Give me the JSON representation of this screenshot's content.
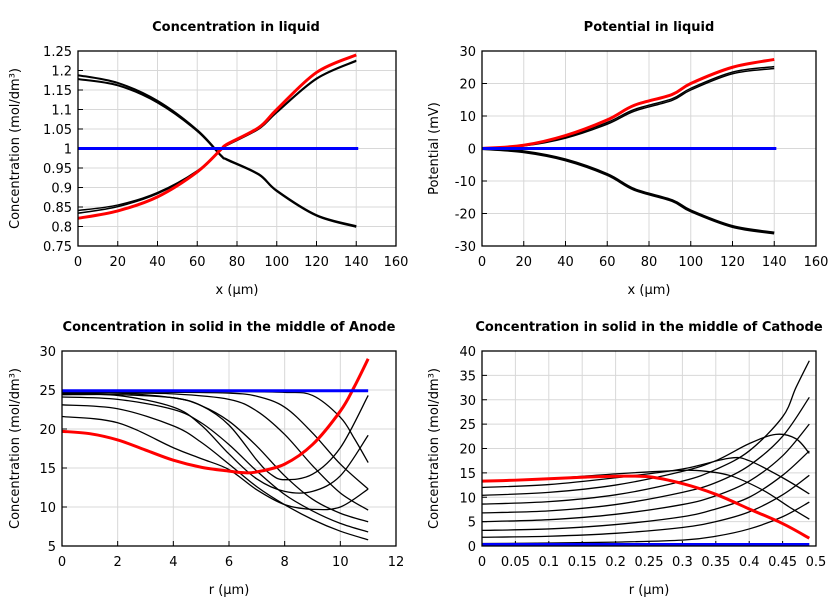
{
  "chart_data": [
    {
      "type": "line",
      "title": "Concentration in liquid",
      "xlabel": "x (µm)",
      "ylabel": "Concentration (mol/dm³)",
      "xlim": [
        0,
        160
      ],
      "ylim": [
        0.75,
        1.25
      ],
      "xticks": [
        "0",
        "20",
        "40",
        "60",
        "80",
        "100",
        "120",
        "140",
        "160"
      ],
      "yticks": [
        "0.75",
        "0.8",
        "0.85",
        "0.9",
        "0.95",
        "1",
        "1.05",
        "1.1",
        "1.15",
        "1.2",
        "1.25"
      ],
      "grid": true,
      "series": [
        {
          "color": "#000000",
          "width": 2,
          "x": [
            0,
            20,
            40,
            60,
            72,
            75,
            91,
            100,
            120,
            140
          ],
          "y": [
            1.188,
            1.168,
            1.122,
            1.047,
            0.982,
            0.972,
            0.934,
            0.892,
            0.829,
            0.801
          ]
        },
        {
          "color": "#000000",
          "width": 2,
          "x": [
            0,
            20,
            40,
            60,
            72,
            75,
            91,
            100,
            120,
            140
          ],
          "y": [
            1.178,
            1.162,
            1.118,
            1.045,
            0.981,
            0.971,
            0.933,
            0.891,
            0.828,
            0.799
          ]
        },
        {
          "color": "#000000",
          "width": 1.5,
          "x": [
            0,
            20,
            40,
            60,
            72,
            75,
            91,
            100,
            120,
            140
          ],
          "y": [
            0.841,
            0.855,
            0.887,
            0.943,
            0.998,
            1.009,
            1.051,
            1.094,
            1.18,
            1.226
          ]
        },
        {
          "color": "#000000",
          "width": 1.5,
          "x": [
            0,
            20,
            40,
            60,
            72,
            75,
            91,
            100,
            120,
            140
          ],
          "y": [
            0.834,
            0.851,
            0.884,
            0.941,
            0.997,
            1.008,
            1.05,
            1.092,
            1.178,
            1.224
          ]
        },
        {
          "color": "#ff0000",
          "width": 3,
          "x": [
            0,
            20,
            40,
            60,
            72,
            75,
            91,
            100,
            120,
            140
          ],
          "y": [
            0.821,
            0.84,
            0.876,
            0.94,
            0.998,
            1.011,
            1.054,
            1.1,
            1.195,
            1.24
          ]
        },
        {
          "color": "#0000ff",
          "width": 3,
          "x": [
            0,
            141
          ],
          "y": [
            1.0,
            1.0
          ]
        }
      ]
    },
    {
      "type": "line",
      "title": "Potential in liquid",
      "xlabel": "x (µm)",
      "ylabel": "Potential (mV)",
      "xlim": [
        0,
        160
      ],
      "ylim": [
        -30,
        30
      ],
      "xticks": [
        "0",
        "20",
        "40",
        "60",
        "80",
        "100",
        "120",
        "140",
        "160"
      ],
      "yticks": [
        "-30",
        "-20",
        "-10",
        "0",
        "10",
        "20",
        "30"
      ],
      "grid": true,
      "series": [
        {
          "color": "#000000",
          "width": 1.5,
          "x": [
            0,
            20,
            40,
            60,
            73,
            91,
            100,
            120,
            140
          ],
          "y": [
            0,
            0.9,
            3.5,
            8,
            12,
            15.3,
            18.5,
            23.5,
            25.2
          ]
        },
        {
          "color": "#000000",
          "width": 1.5,
          "x": [
            0,
            20,
            40,
            60,
            73,
            91,
            100,
            120,
            140
          ],
          "y": [
            0,
            0.8,
            3.2,
            7.5,
            11.5,
            14.8,
            18,
            23,
            24.6
          ]
        },
        {
          "color": "#000000",
          "width": 3,
          "x": [
            0,
            20,
            40,
            60,
            73,
            91,
            100,
            120,
            140
          ],
          "y": [
            0,
            -1,
            -3.5,
            -8,
            -12.6,
            -16,
            -19.2,
            -24,
            -26
          ]
        },
        {
          "color": "#ff0000",
          "width": 3,
          "x": [
            0,
            20,
            40,
            60,
            73,
            91,
            100,
            120,
            140
          ],
          "y": [
            0,
            1,
            4,
            8.8,
            13.3,
            16.6,
            20,
            25,
            27.4
          ]
        },
        {
          "color": "#0000ff",
          "width": 3,
          "x": [
            0,
            141
          ],
          "y": [
            0,
            0
          ]
        }
      ]
    },
    {
      "type": "line",
      "title": "Concentration in solid in the middle of Anode",
      "xlabel": "r (µm)",
      "ylabel": "Concentration (mol/dm³)",
      "xlim": [
        0,
        12
      ],
      "ylim": [
        5,
        30
      ],
      "xticks": [
        "0",
        "2",
        "4",
        "6",
        "8",
        "10",
        "12"
      ],
      "yticks": [
        "5",
        "10",
        "15",
        "20",
        "25",
        "30"
      ],
      "grid": true,
      "series": [
        {
          "color": "#000000",
          "width": 1.3,
          "x": [
            0,
            2,
            4,
            6,
            8,
            9,
            10,
            10.5,
            11
          ],
          "y": [
            24.8,
            24.8,
            24.8,
            24.8,
            24.7,
            24.3,
            21.5,
            18.8,
            15.7
          ]
        },
        {
          "color": "#000000",
          "width": 1.3,
          "x": [
            0,
            2,
            4,
            6,
            7,
            8,
            9,
            10,
            11
          ],
          "y": [
            24.7,
            24.7,
            24.7,
            24.6,
            24.2,
            22.8,
            19.5,
            15.5,
            12.3
          ]
        },
        {
          "color": "#000000",
          "width": 1.3,
          "x": [
            0,
            2,
            4,
            6,
            7,
            8,
            9,
            10,
            11
          ],
          "y": [
            24.6,
            24.6,
            24.5,
            23.8,
            22.3,
            19.3,
            15.3,
            11.8,
            9.6
          ]
        },
        {
          "color": "#000000",
          "width": 1.3,
          "x": [
            0,
            2,
            4,
            5,
            6,
            7,
            8,
            9,
            10,
            11
          ],
          "y": [
            24.4,
            24.4,
            24,
            23,
            21,
            17.8,
            14,
            11,
            9.2,
            8.1
          ]
        },
        {
          "color": "#000000",
          "width": 1.3,
          "x": [
            0,
            2,
            4,
            5,
            6,
            7,
            8,
            9,
            10,
            11
          ],
          "y": [
            24.1,
            23.8,
            22.5,
            20.8,
            18,
            14.6,
            11.6,
            9.5,
            7.9,
            6.8
          ]
        },
        {
          "color": "#000000",
          "width": 1.3,
          "x": [
            0,
            2,
            4,
            5,
            6,
            7,
            8,
            9,
            10,
            11
          ],
          "y": [
            23.1,
            22.6,
            20.4,
            18.3,
            15.5,
            12.6,
            10.3,
            8.4,
            6.9,
            5.8
          ]
        },
        {
          "color": "#000000",
          "width": 1.3,
          "x": [
            0,
            2,
            4,
            5,
            6,
            7,
            8,
            9,
            10,
            11
          ],
          "y": [
            21.6,
            20.8,
            17.6,
            16.2,
            14.8,
            12.2,
            10.3,
            9.7,
            10,
            12.3
          ]
        },
        {
          "color": "#000000",
          "width": 1.3,
          "x": [
            0,
            2,
            4,
            5,
            6,
            7,
            8,
            9,
            10,
            11
          ],
          "y": [
            24.5,
            24.3,
            22.8,
            20.5,
            16.8,
            13.6,
            12,
            12,
            14,
            19.2
          ]
        },
        {
          "color": "#000000",
          "width": 1.3,
          "x": [
            0,
            2,
            4,
            5,
            6,
            7,
            7.5,
            8,
            9,
            10,
            11
          ],
          "y": [
            24.7,
            24.6,
            24,
            23,
            20.5,
            16,
            14.2,
            13.5,
            14.2,
            17.6,
            24.3
          ]
        },
        {
          "color": "#ff0000",
          "width": 3,
          "x": [
            0,
            1,
            2,
            3,
            4,
            5,
            6,
            6.5,
            7,
            8,
            9,
            10,
            10.5,
            11
          ],
          "y": [
            19.7,
            19.4,
            18.6,
            17.3,
            16,
            15.1,
            14.6,
            14.4,
            14.5,
            15.5,
            18,
            22.3,
            25.4,
            29
          ]
        },
        {
          "color": "#0000ff",
          "width": 3,
          "x": [
            0,
            11
          ],
          "y": [
            24.9,
            24.9
          ]
        }
      ]
    },
    {
      "type": "line",
      "title": "Concentration in solid in the middle of Cathode",
      "xlabel": "r (µm)",
      "ylabel": "Concentration (mol/dm³)",
      "xlim": [
        0,
        0.5
      ],
      "ylim": [
        0,
        40
      ],
      "xticks": [
        "0",
        "0.05",
        "0.1",
        "0.15",
        "0.2",
        "0.25",
        "0.3",
        "0.35",
        "0.4",
        "0.45",
        "0.5"
      ],
      "yticks": [
        "0",
        "5",
        "10",
        "15",
        "20",
        "25",
        "30",
        "35",
        "40"
      ],
      "grid": true,
      "series": [
        {
          "color": "#000000",
          "width": 1.3,
          "x": [
            0,
            0.1,
            0.2,
            0.3,
            0.35,
            0.4,
            0.45,
            0.49
          ],
          "y": [
            0.5,
            0.6,
            0.8,
            1.2,
            2,
            3.5,
            6,
            9
          ]
        },
        {
          "color": "#000000",
          "width": 1.3,
          "x": [
            0,
            0.1,
            0.2,
            0.3,
            0.35,
            0.4,
            0.45,
            0.49
          ],
          "y": [
            1.8,
            2,
            2.6,
            3.8,
            5,
            7,
            10.5,
            14.5
          ]
        },
        {
          "color": "#000000",
          "width": 1.3,
          "x": [
            0,
            0.1,
            0.2,
            0.3,
            0.35,
            0.4,
            0.45,
            0.49
          ],
          "y": [
            3.2,
            3.5,
            4.4,
            6,
            7.6,
            10,
            14.5,
            19.5
          ]
        },
        {
          "color": "#000000",
          "width": 1.3,
          "x": [
            0,
            0.1,
            0.2,
            0.3,
            0.35,
            0.4,
            0.45,
            0.49
          ],
          "y": [
            5,
            5.4,
            6.5,
            8.5,
            10.3,
            13.3,
            18.5,
            25
          ]
        },
        {
          "color": "#000000",
          "width": 1.3,
          "x": [
            0,
            0.1,
            0.2,
            0.3,
            0.35,
            0.4,
            0.45,
            0.49
          ],
          "y": [
            6.8,
            7.2,
            8.5,
            11,
            13,
            16.5,
            22.5,
            30.5
          ]
        },
        {
          "color": "#000000",
          "width": 1.3,
          "x": [
            0,
            0.1,
            0.2,
            0.3,
            0.35,
            0.4,
            0.45,
            0.47,
            0.49
          ],
          "y": [
            8.6,
            9.1,
            10.5,
            13.3,
            15.7,
            19.5,
            26.5,
            32.5,
            38
          ]
        },
        {
          "color": "#000000",
          "width": 1.3,
          "x": [
            0,
            0.1,
            0.2,
            0.3,
            0.35,
            0.4,
            0.44,
            0.47,
            0.49
          ],
          "y": [
            10.4,
            11,
            12.5,
            15.3,
            17.5,
            21,
            22.9,
            22,
            19
          ]
        },
        {
          "color": "#000000",
          "width": 1.3,
          "x": [
            0,
            0.1,
            0.2,
            0.3,
            0.37,
            0.4,
            0.45,
            0.49
          ],
          "y": [
            12,
            12.6,
            14,
            15.8,
            18,
            17.5,
            14,
            10.7
          ]
        },
        {
          "color": "#000000",
          "width": 1.3,
          "x": [
            0,
            0.1,
            0.2,
            0.28,
            0.32,
            0.37,
            0.42,
            0.46,
            0.49
          ],
          "y": [
            13.2,
            13.8,
            14.8,
            15.4,
            15.5,
            14.5,
            11.5,
            8,
            5.5
          ]
        },
        {
          "color": "#ff0000",
          "width": 3,
          "x": [
            0,
            0.05,
            0.1,
            0.15,
            0.2,
            0.25,
            0.3,
            0.35,
            0.4,
            0.45,
            0.49
          ],
          "y": [
            13.3,
            13.5,
            13.8,
            14.1,
            14.3,
            14.2,
            12.8,
            10.6,
            7.6,
            4.6,
            1.6
          ]
        },
        {
          "color": "#0000ff",
          "width": 3,
          "x": [
            0,
            0.49
          ],
          "y": [
            0.3,
            0.3
          ]
        }
      ]
    }
  ]
}
